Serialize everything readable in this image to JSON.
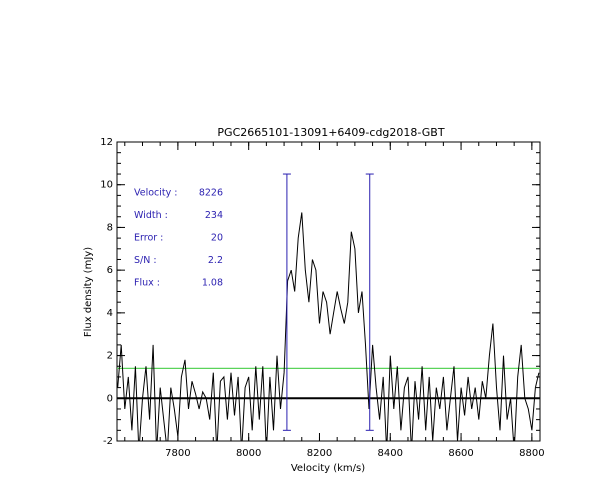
{
  "chart_data": {
    "type": "line",
    "title": "PGC2665101-13091+6409-cdg2018-GBT",
    "xlabel": "Velocity (km/s)",
    "ylabel": "Flux density (mJy)",
    "xlim": [
      7628,
      8823
    ],
    "ylim": [
      -2,
      12
    ],
    "xticks": [
      7800,
      8000,
      8200,
      8400,
      8600,
      8800
    ],
    "yticks": [
      -2,
      0,
      2,
      4,
      6,
      8,
      10,
      12
    ],
    "x": [
      7630,
      7640,
      7650,
      7660,
      7670,
      7680,
      7690,
      7700,
      7710,
      7720,
      7730,
      7740,
      7750,
      7760,
      7770,
      7780,
      7790,
      7800,
      7810,
      7820,
      7830,
      7840,
      7850,
      7860,
      7870,
      7880,
      7890,
      7900,
      7910,
      7920,
      7930,
      7940,
      7950,
      7960,
      7970,
      7980,
      7990,
      8000,
      8010,
      8020,
      8030,
      8040,
      8050,
      8060,
      8070,
      8080,
      8090,
      8100,
      8110,
      8120,
      8130,
      8140,
      8150,
      8160,
      8170,
      8180,
      8190,
      8200,
      8210,
      8220,
      8230,
      8240,
      8250,
      8260,
      8270,
      8280,
      8290,
      8300,
      8310,
      8320,
      8330,
      8340,
      8350,
      8360,
      8370,
      8380,
      8390,
      8400,
      8410,
      8420,
      8430,
      8440,
      8450,
      8460,
      8470,
      8480,
      8490,
      8500,
      8510,
      8520,
      8530,
      8540,
      8550,
      8560,
      8570,
      8580,
      8590,
      8600,
      8610,
      8620,
      8630,
      8640,
      8650,
      8660,
      8670,
      8680,
      8690,
      8700,
      8710,
      8720,
      8730,
      8740,
      8750,
      8760,
      8770,
      8780,
      8790,
      8800,
      8810,
      8820
    ],
    "series": [
      {
        "color": "#000000",
        "values": [
          0.5,
          2.5,
          -0.5,
          1.0,
          -1.5,
          1.5,
          -2.5,
          0.0,
          1.5,
          -1.0,
          2.5,
          -2.5,
          0.5,
          -1.0,
          -2.5,
          0.5,
          -0.5,
          -1.8,
          1.0,
          1.8,
          -0.5,
          0.8,
          0.2,
          -0.5,
          0.3,
          0.0,
          -1.0,
          1.2,
          -2.5,
          0.8,
          1.0,
          -1.0,
          1.2,
          -0.8,
          1.0,
          -2.5,
          0.5,
          1.0,
          -1.5,
          1.5,
          -1.0,
          1.5,
          -2.5,
          1.0,
          -1.5,
          2.0,
          -0.5,
          1.2,
          5.5,
          6.0,
          5.0,
          7.5,
          8.7,
          6.0,
          4.5,
          6.5,
          6.0,
          3.5,
          5.0,
          4.5,
          3.0,
          4.0,
          5.0,
          4.2,
          3.5,
          4.5,
          7.8,
          7.0,
          4.0,
          5.0,
          2.5,
          -0.5,
          2.5,
          0.5,
          -1.0,
          1.0,
          -2.5,
          2.0,
          -0.5,
          1.5,
          -1.5,
          0.5,
          1.0,
          -2.5,
          0.8,
          -1.0,
          1.5,
          -1.5,
          1.0,
          -2.0,
          0.5,
          -0.5,
          1.0,
          -1.5,
          0.0,
          1.5,
          -2.0,
          0.5,
          -0.8,
          1.0,
          -0.5,
          0.5,
          -1.0,
          0.8,
          0.0,
          2.0,
          3.5,
          0.5,
          -1.5,
          2.0,
          -1.0,
          0.0,
          -2.5,
          1.0,
          2.5,
          0.0,
          -0.5,
          -1.5,
          0.5,
          1.2
        ]
      }
    ],
    "markers": {
      "x": [
        8108,
        8342
      ],
      "ylim": [
        -1.5,
        10.5
      ],
      "color": "#2a1fb0"
    },
    "threshold": {
      "value": 1.4,
      "color": "#5ad35a"
    },
    "annotations": [
      {
        "label": "Velocity :",
        "value": 8226
      },
      {
        "label": "Width :",
        "value": 234
      },
      {
        "label": "Error :",
        "value": 20
      },
      {
        "label": "S/N :",
        "value": 2.2
      },
      {
        "label": "Flux :",
        "value": 1.08
      }
    ]
  }
}
